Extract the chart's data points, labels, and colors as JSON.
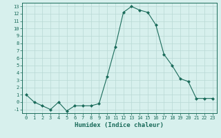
{
  "x": [
    0,
    1,
    2,
    3,
    4,
    5,
    6,
    7,
    8,
    9,
    10,
    11,
    12,
    13,
    14,
    15,
    16,
    17,
    18,
    19,
    20,
    21,
    22,
    23
  ],
  "y": [
    1,
    0,
    -0.5,
    -1,
    0,
    -1.2,
    -0.5,
    -0.5,
    -0.5,
    -0.2,
    3.5,
    7.5,
    12.2,
    13.0,
    12.5,
    12.2,
    10.5,
    6.5,
    5.0,
    3.2,
    2.8,
    0.5,
    0.5,
    0.5
  ],
  "line_color": "#1a6b5a",
  "marker": "D",
  "marker_size": 2.0,
  "bg_color": "#d7f0ed",
  "grid_color": "#b8d8d4",
  "xlabel": "Humidex (Indice chaleur)",
  "xlabel_color": "#1a6b5a",
  "tick_color": "#1a6b5a",
  "ylim": [
    -1.5,
    13.5
  ],
  "xlim": [
    -0.5,
    23.5
  ],
  "yticks": [
    -1,
    0,
    1,
    2,
    3,
    4,
    5,
    6,
    7,
    8,
    9,
    10,
    11,
    12,
    13
  ],
  "xticks": [
    0,
    1,
    2,
    3,
    4,
    5,
    6,
    7,
    8,
    9,
    10,
    11,
    12,
    13,
    14,
    15,
    16,
    17,
    18,
    19,
    20,
    21,
    22,
    23
  ]
}
